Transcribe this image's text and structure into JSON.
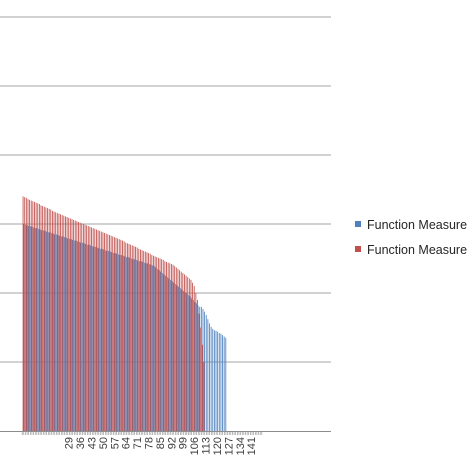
{
  "chart_data": {
    "type": "bar",
    "title": "",
    "xlabel": "",
    "ylabel": "",
    "grid": true,
    "legend_placement": "right",
    "colors": {
      "series_1": "#4F81BD",
      "series_2": "#C0504D",
      "grid": "#A6A6A6",
      "axis": "#8C8C8C"
    },
    "y_gridlines": [
      1,
      2,
      3,
      4,
      5,
      6
    ],
    "ylim": [
      0,
      6
    ],
    "x_tick_labels": [
      "29",
      "36",
      "43",
      "50",
      "57",
      "64",
      "71",
      "78",
      "85",
      "92",
      "99",
      "106",
      "113",
      "120",
      "127",
      "134",
      "141"
    ],
    "x_range": [
      1,
      148
    ],
    "series": [
      {
        "name": "Function Measure",
        "x_start": 1,
        "values": [
          3.0,
          2.99,
          2.98,
          2.97,
          2.97,
          2.96,
          2.95,
          2.94,
          2.94,
          2.93,
          2.92,
          2.91,
          2.91,
          2.9,
          2.89,
          2.88,
          2.88,
          2.87,
          2.86,
          2.85,
          2.85,
          2.84,
          2.83,
          2.82,
          2.82,
          2.81,
          2.8,
          2.79,
          2.79,
          2.78,
          2.77,
          2.76,
          2.76,
          2.75,
          2.74,
          2.73,
          2.73,
          2.72,
          2.71,
          2.7,
          2.7,
          2.69,
          2.68,
          2.67,
          2.67,
          2.66,
          2.65,
          2.64,
          2.64,
          2.63,
          2.62,
          2.61,
          2.61,
          2.6,
          2.59,
          2.58,
          2.58,
          2.57,
          2.56,
          2.55,
          2.55,
          2.54,
          2.53,
          2.52,
          2.52,
          2.51,
          2.5,
          2.49,
          2.49,
          2.48,
          2.47,
          2.46,
          2.46,
          2.45,
          2.44,
          2.43,
          2.43,
          2.42,
          2.41,
          2.4,
          2.39,
          2.37,
          2.35,
          2.33,
          2.31,
          2.29,
          2.27,
          2.25,
          2.23,
          2.21,
          2.19,
          2.17,
          2.15,
          2.13,
          2.11,
          2.09,
          2.07,
          2.05,
          2.03,
          2.01,
          1.99,
          1.97,
          1.95,
          1.92,
          1.9,
          1.87,
          1.85,
          1.82,
          1.8,
          1.8,
          1.77,
          1.73,
          1.68,
          1.62,
          1.56,
          1.51,
          1.48,
          1.46,
          1.45,
          1.44,
          1.42,
          1.41,
          1.39,
          1.37,
          1.35
        ]
      },
      {
        "name": "Function Measure",
        "x_start": 1,
        "values": [
          3.4,
          3.39,
          3.38,
          3.36,
          3.35,
          3.34,
          3.33,
          3.32,
          3.31,
          3.3,
          3.29,
          3.27,
          3.26,
          3.25,
          3.24,
          3.23,
          3.22,
          3.21,
          3.19,
          3.18,
          3.17,
          3.16,
          3.15,
          3.14,
          3.13,
          3.12,
          3.11,
          3.1,
          3.09,
          3.08,
          3.07,
          3.06,
          3.05,
          3.04,
          3.03,
          3.02,
          3.01,
          3.0,
          2.99,
          2.98,
          2.97,
          2.96,
          2.95,
          2.94,
          2.93,
          2.92,
          2.91,
          2.9,
          2.89,
          2.88,
          2.87,
          2.86,
          2.85,
          2.84,
          2.83,
          2.82,
          2.81,
          2.8,
          2.79,
          2.78,
          2.77,
          2.76,
          2.75,
          2.73,
          2.72,
          2.71,
          2.7,
          2.69,
          2.68,
          2.67,
          2.66,
          2.64,
          2.63,
          2.62,
          2.61,
          2.6,
          2.59,
          2.58,
          2.57,
          2.55,
          2.54,
          2.53,
          2.52,
          2.51,
          2.5,
          2.49,
          2.48,
          2.46,
          2.45,
          2.44,
          2.43,
          2.42,
          2.41,
          2.39,
          2.37,
          2.35,
          2.33,
          2.31,
          2.29,
          2.27,
          2.25,
          2.23,
          2.21,
          2.19,
          2.15,
          2.1,
          2.0,
          1.9,
          1.7,
          1.5,
          1.25,
          1.0
        ]
      }
    ]
  }
}
